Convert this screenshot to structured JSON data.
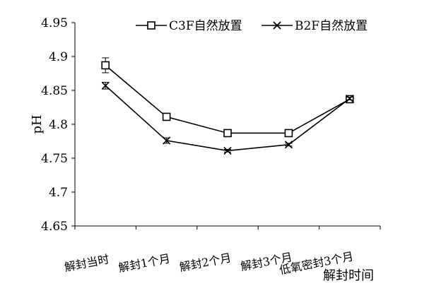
{
  "chart_data": {
    "type": "line",
    "categories": [
      "解封当时",
      "解封1个月",
      "解封2个月",
      "解封3个月",
      "低氧密封3个月"
    ],
    "xlabel": "解封时间",
    "ylabel": "pH",
    "ylim": [
      4.65,
      4.95
    ],
    "yticks": [
      4.65,
      4.7,
      4.75,
      4.8,
      4.85,
      4.9,
      4.95
    ],
    "ytick_labels": [
      "4.65",
      "4.7",
      "4.75",
      "4.8",
      "4.85",
      "4.9",
      "4.95"
    ],
    "grid": false,
    "legend_position": "top-right",
    "series": [
      {
        "name": "C3F自然放置",
        "marker": "square",
        "values": [
          4.887,
          4.811,
          4.787,
          4.787,
          4.837
        ],
        "errors": [
          0.011,
          0.002,
          0.002,
          0.002,
          0.002
        ]
      },
      {
        "name": "B2F自然放置",
        "marker": "x",
        "values": [
          4.857,
          4.776,
          4.761,
          4.77,
          4.838
        ],
        "errors": [
          0.005,
          0.004,
          0.002,
          0.002,
          0.002
        ]
      }
    ]
  }
}
